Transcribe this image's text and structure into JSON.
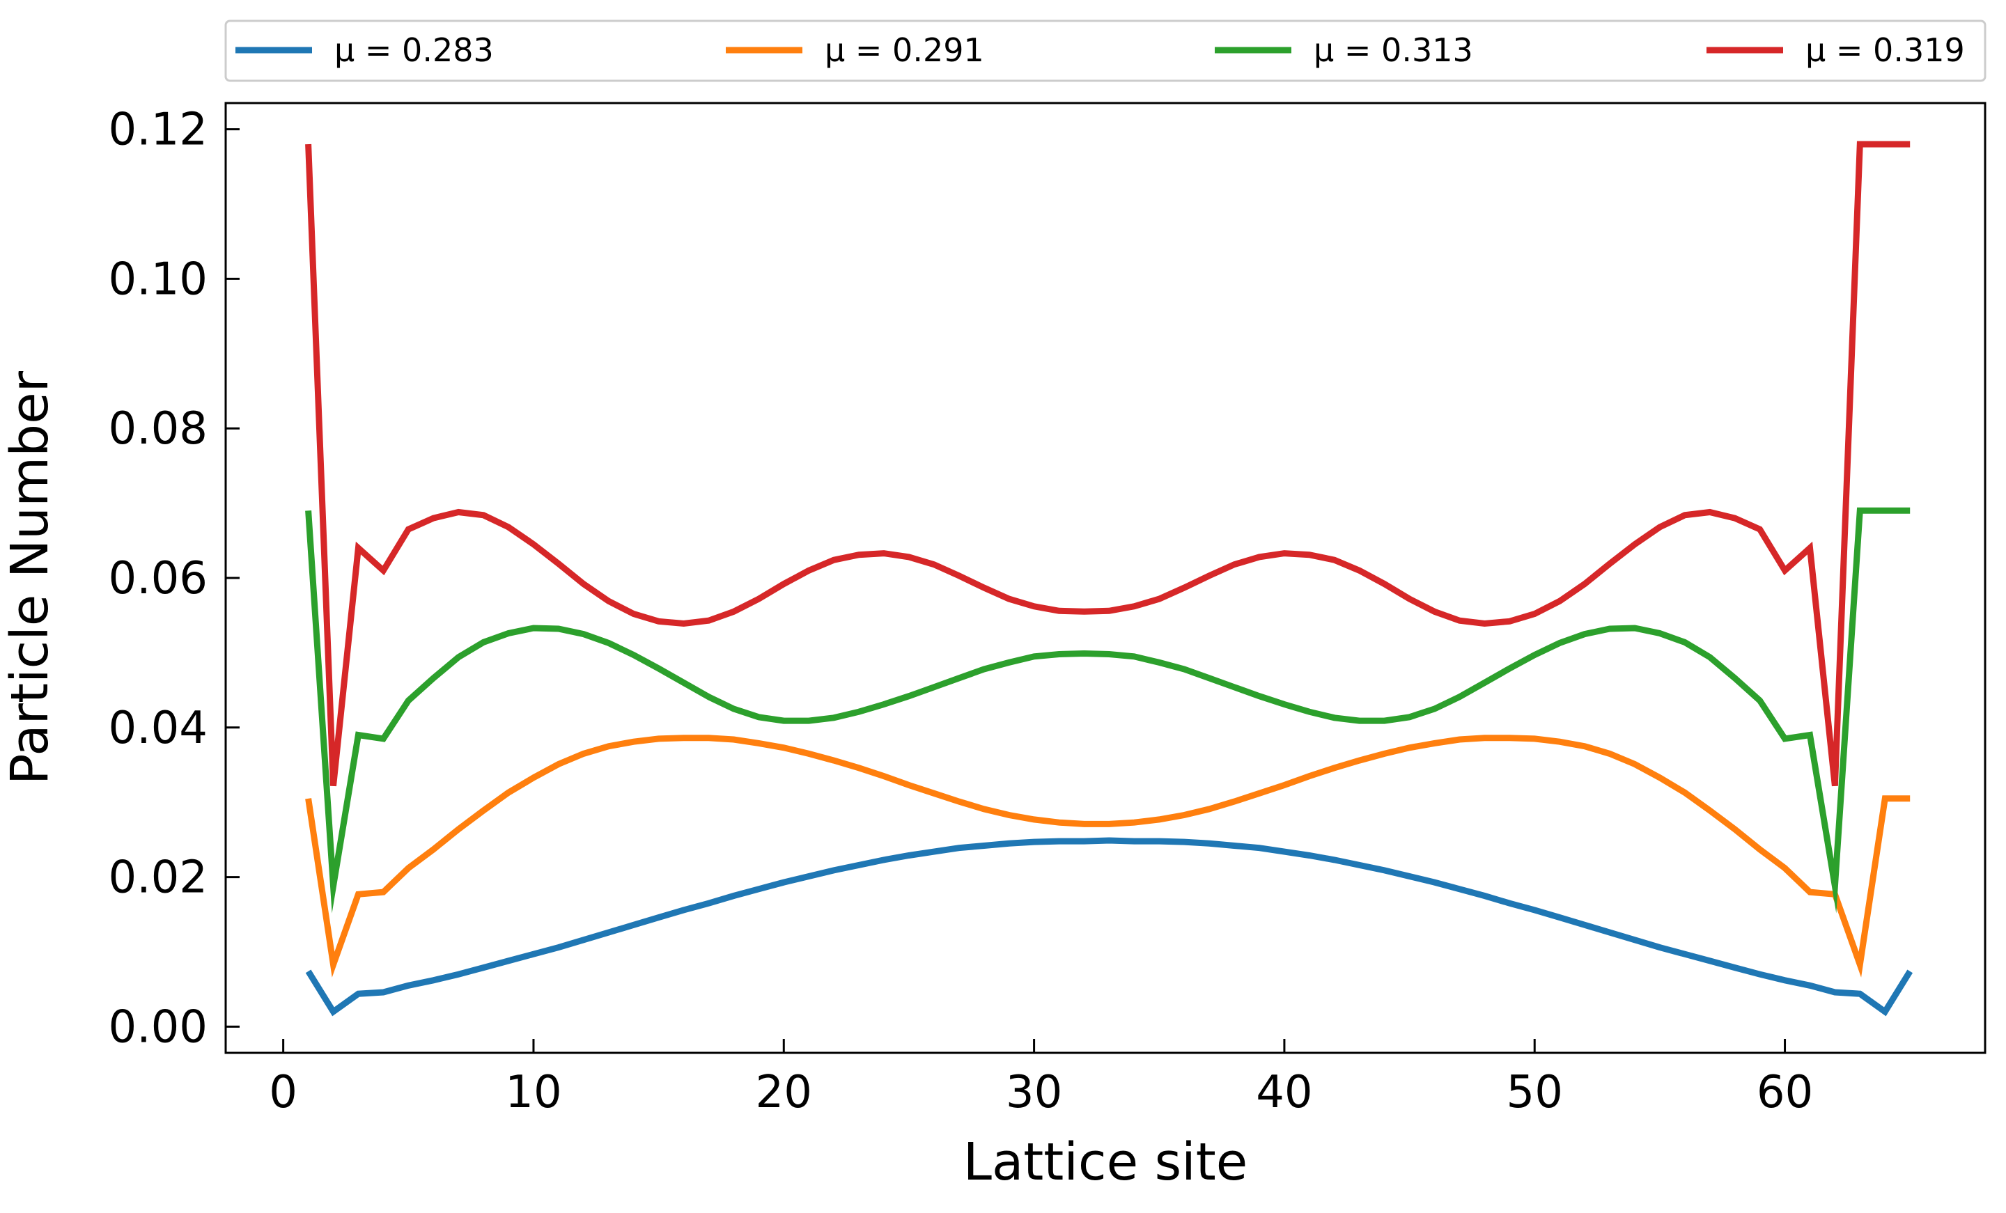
{
  "chart_data": {
    "type": "line",
    "xlabel": "Lattice site",
    "ylabel": "Particle Number",
    "xlim": [
      -2.3,
      68
    ],
    "ylim": [
      -0.0035,
      0.1235
    ],
    "xticks": [
      "0",
      "10",
      "20",
      "30",
      "40",
      "50",
      "60"
    ],
    "yticks": [
      "0.00",
      "0.02",
      "0.04",
      "0.06",
      "0.08",
      "0.10",
      "0.12"
    ],
    "grid": false,
    "legend_placement": "top, above plot, single row",
    "colors": [
      "#1f77b4",
      "#ff7f0e",
      "#2ca02c",
      "#d62728"
    ],
    "x": [
      1,
      2,
      3,
      4,
      5,
      6,
      7,
      8,
      9,
      10,
      11,
      12,
      13,
      14,
      15,
      16,
      17,
      18,
      19,
      20,
      21,
      22,
      23,
      24,
      25,
      26,
      27,
      28,
      29,
      30,
      31,
      32,
      33,
      34,
      35,
      36,
      37,
      38,
      39,
      40,
      41,
      42,
      43,
      44,
      45,
      46,
      47,
      48,
      49,
      50,
      51,
      52,
      53,
      54,
      55,
      56,
      57,
      58,
      59,
      60,
      61,
      62,
      63,
      64,
      65
    ],
    "series": [
      {
        "name": "μ = 0.283",
        "values": [
          0.0074,
          0.002,
          0.0044,
          0.0046,
          0.0055,
          0.0062,
          0.007,
          0.0079,
          0.0088,
          0.0097,
          0.0106,
          0.0116,
          0.0126,
          0.0136,
          0.0146,
          0.0156,
          0.0165,
          0.0175,
          0.0184,
          0.0193,
          0.0201,
          0.0209,
          0.0216,
          0.0223,
          0.0229,
          0.0234,
          0.0239,
          0.0242,
          0.0245,
          0.0247,
          0.0248,
          0.0248,
          0.0249,
          0.0248,
          0.0248,
          0.0247,
          0.0245,
          0.0242,
          0.0239,
          0.0234,
          0.0229,
          0.0223,
          0.0216,
          0.0209,
          0.0201,
          0.0193,
          0.0184,
          0.0175,
          0.0165,
          0.0156,
          0.0146,
          0.0136,
          0.0126,
          0.0116,
          0.0106,
          0.0097,
          0.0088,
          0.0079,
          0.007,
          0.0062,
          0.0055,
          0.0046,
          0.0044,
          0.002,
          0.0074
        ]
      },
      {
        "name": "μ = 0.291",
        "values": [
          0.0305,
          0.0083,
          0.0177,
          0.018,
          0.0212,
          0.0237,
          0.0264,
          0.0289,
          0.0313,
          0.0333,
          0.0351,
          0.0365,
          0.0375,
          0.0381,
          0.0385,
          0.0386,
          0.0386,
          0.0384,
          0.0379,
          0.0373,
          0.0365,
          0.0356,
          0.0346,
          0.0335,
          0.0323,
          0.0312,
          0.0301,
          0.0291,
          0.0283,
          0.0277,
          0.0273,
          0.0271,
          0.0271,
          0.0273,
          0.0277,
          0.0283,
          0.0291,
          0.0301,
          0.0312,
          0.0323,
          0.0335,
          0.0346,
          0.0356,
          0.0365,
          0.0373,
          0.0379,
          0.0384,
          0.0386,
          0.0386,
          0.0385,
          0.0381,
          0.0375,
          0.0365,
          0.0351,
          0.0333,
          0.0313,
          0.0289,
          0.0264,
          0.0237,
          0.0212,
          0.018,
          0.0177,
          0.0083,
          0.0305,
          0.0305
        ]
      },
      {
        "name": "μ = 0.313",
        "values": [
          0.069,
          0.0188,
          0.039,
          0.0385,
          0.0436,
          0.0466,
          0.0494,
          0.0514,
          0.0526,
          0.0533,
          0.0532,
          0.0525,
          0.0513,
          0.0497,
          0.0479,
          0.046,
          0.0441,
          0.0425,
          0.0414,
          0.0409,
          0.0409,
          0.0413,
          0.0421,
          0.0431,
          0.0442,
          0.0454,
          0.0466,
          0.0478,
          0.0487,
          0.0495,
          0.0498,
          0.0499,
          0.0498,
          0.0495,
          0.0487,
          0.0478,
          0.0466,
          0.0454,
          0.0442,
          0.0431,
          0.0421,
          0.0413,
          0.0409,
          0.0409,
          0.0414,
          0.0425,
          0.0441,
          0.046,
          0.0479,
          0.0497,
          0.0513,
          0.0525,
          0.0532,
          0.0533,
          0.0526,
          0.0514,
          0.0494,
          0.0466,
          0.0436,
          0.0385,
          0.039,
          0.0188,
          0.069,
          0.069,
          0.069
        ]
      },
      {
        "name": "μ = 0.319",
        "values": [
          0.118,
          0.0322,
          0.064,
          0.061,
          0.0665,
          0.068,
          0.0688,
          0.0684,
          0.0668,
          0.0645,
          0.0619,
          0.0592,
          0.0569,
          0.0552,
          0.0542,
          0.0539,
          0.0543,
          0.0555,
          0.0572,
          0.0592,
          0.061,
          0.0624,
          0.0631,
          0.0633,
          0.0628,
          0.0618,
          0.0603,
          0.0587,
          0.0572,
          0.0562,
          0.0556,
          0.0555,
          0.0556,
          0.0562,
          0.0572,
          0.0587,
          0.0603,
          0.0618,
          0.0628,
          0.0633,
          0.0631,
          0.0624,
          0.061,
          0.0592,
          0.0572,
          0.0555,
          0.0543,
          0.0539,
          0.0542,
          0.0552,
          0.0569,
          0.0592,
          0.0619,
          0.0645,
          0.0668,
          0.0684,
          0.0688,
          0.068,
          0.0665,
          0.061,
          0.064,
          0.0322,
          0.118,
          0.118,
          0.118
        ]
      }
    ]
  }
}
